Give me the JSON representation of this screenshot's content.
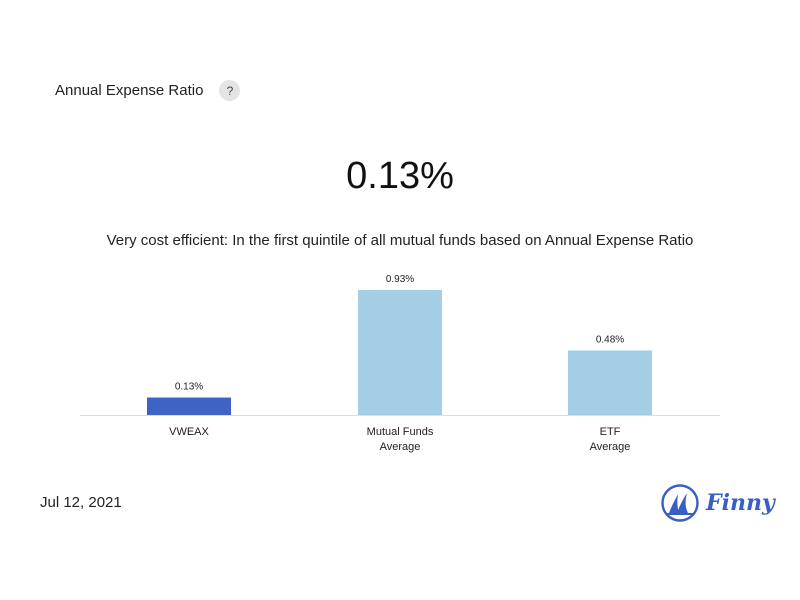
{
  "header": {
    "title": "Annual Expense Ratio",
    "help_label": "?"
  },
  "summary": {
    "value": "0.13%",
    "description": "Very cost efficient: In the first quintile of all mutual funds based on Annual Expense Ratio"
  },
  "footer": {
    "date": "Jul 12, 2021",
    "brand": "Finny"
  },
  "colors": {
    "highlight_bar": "#3f63c5",
    "other_bar": "#a4cde6",
    "axis": "#dddddd",
    "brand": "#3a5fc4"
  },
  "chart_data": {
    "type": "bar",
    "title": "Annual Expense Ratio",
    "categories": [
      [
        "VWEAX"
      ],
      [
        "Mutual Funds",
        "Average"
      ],
      [
        "ETF",
        "Average"
      ]
    ],
    "values": [
      0.13,
      0.93,
      0.48
    ],
    "value_labels": [
      "0.13%",
      "0.93%",
      "0.48%"
    ],
    "highlight_index": 0,
    "ylim": [
      0,
      0.93
    ],
    "xlabel": "",
    "ylabel": "",
    "grid": false
  }
}
